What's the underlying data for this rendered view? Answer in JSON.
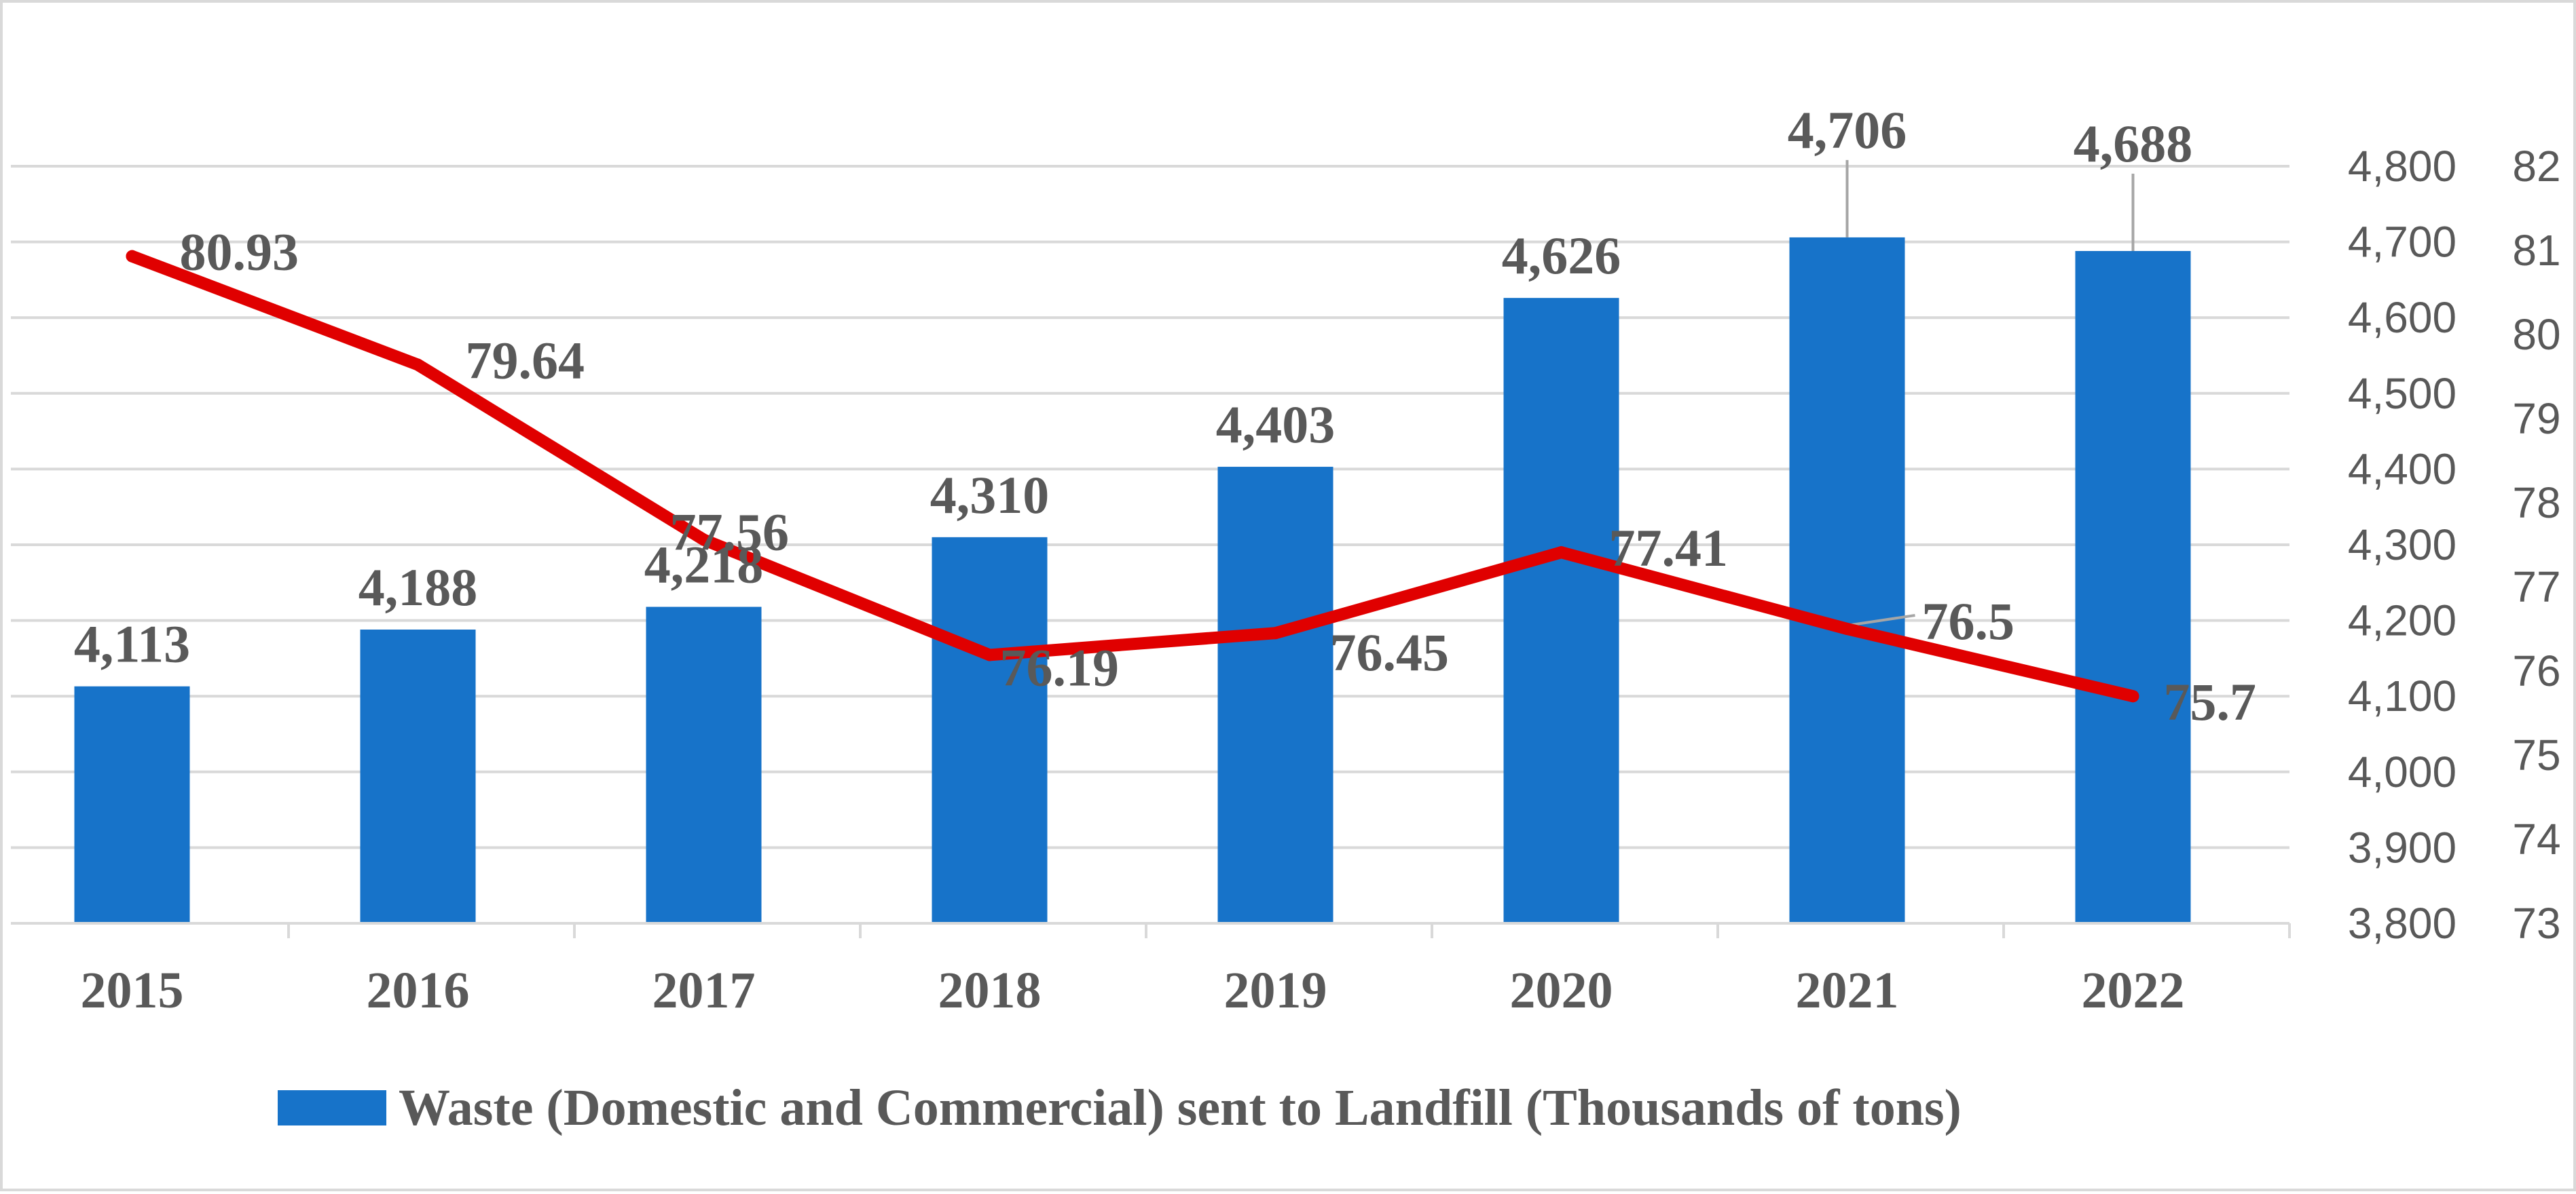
{
  "chart_data": {
    "type": "bar",
    "title": "",
    "xlabel": "",
    "ylabel": "",
    "categories": [
      "2015",
      "2016",
      "2017",
      "2018",
      "2019",
      "2020",
      "2021",
      "2022"
    ],
    "series": [
      {
        "name": "Waste (Domestic and Commercial) sent to Landfill (Thousands of tons)",
        "type": "bar",
        "axis": "left",
        "values": [
          4113,
          4188,
          4218,
          4310,
          4403,
          4626,
          4706,
          4688
        ],
        "labels": [
          "4,113",
          "4,188",
          "4,218",
          "4,310",
          "4,403",
          "4,626",
          "4,706",
          "4,688"
        ],
        "color": "#1773c9"
      },
      {
        "name": "",
        "type": "line",
        "axis": "right",
        "values": [
          80.93,
          79.64,
          77.56,
          76.19,
          76.45,
          77.41,
          76.5,
          75.7
        ],
        "labels": [
          "80.93",
          "79.64",
          "77.56",
          "76.19",
          "76.45",
          "77.41",
          "76.5",
          "75.7"
        ],
        "color": "#e00000"
      }
    ],
    "left_axis": {
      "ylim": [
        3800,
        4800
      ],
      "ticks": [
        3800,
        3900,
        4000,
        4100,
        4200,
        4300,
        4400,
        4500,
        4600,
        4700,
        4800
      ],
      "tick_labels": [
        "3,800",
        "3,900",
        "4,000",
        "4,100",
        "4,200",
        "4,300",
        "4,400",
        "4,500",
        "4,600",
        "4,700",
        "4,800"
      ]
    },
    "right_axis": {
      "ylim": [
        73,
        82
      ],
      "ticks": [
        73,
        74,
        75,
        76,
        77,
        78,
        79,
        80,
        81,
        82
      ],
      "tick_labels": [
        "73",
        "74",
        "75",
        "76",
        "77",
        "78",
        "79",
        "80",
        "81",
        "82"
      ]
    },
    "grid": true,
    "legend": {
      "position": "bottom",
      "entries": [
        "Waste (Domestic and Commercial) sent to Landfill (Thousands of tons)"
      ]
    }
  }
}
